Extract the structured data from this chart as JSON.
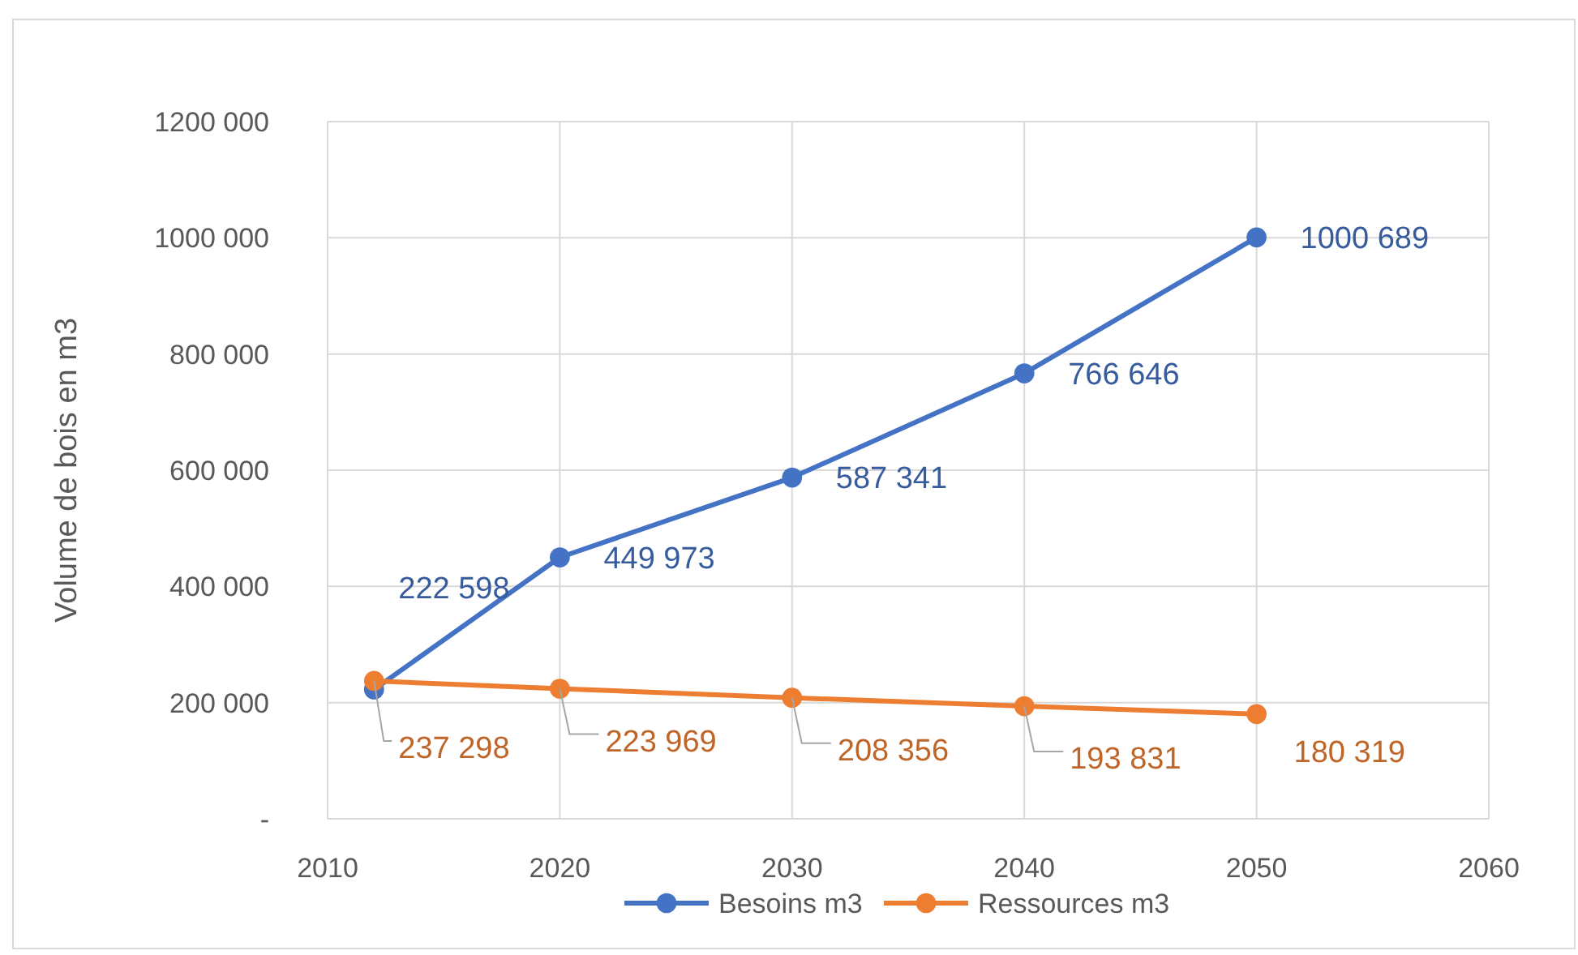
{
  "chart_data": {
    "type": "line",
    "ylabel": "Volume de bois en m3",
    "x": [
      2012,
      2020,
      2030,
      2040,
      2050
    ],
    "series": [
      {
        "name": "Besoins m3",
        "color": "#4472c4",
        "values": [
          222598,
          449973,
          587341,
          766646,
          1000689
        ],
        "value_labels": [
          "222 598",
          "449 973",
          "587 341",
          "766 646",
          "1000 689"
        ]
      },
      {
        "name": "Ressources m3",
        "color": "#ed7d31",
        "values": [
          237298,
          223969,
          208356,
          193831,
          180319
        ],
        "value_labels": [
          "237 298",
          "223 969",
          "208 356",
          "193 831",
          "180 319"
        ]
      }
    ],
    "xlim": [
      2010,
      2060
    ],
    "xticks": [
      2010,
      2020,
      2030,
      2040,
      2050,
      2060
    ],
    "ylim": [
      0,
      1200000
    ],
    "yticks": [
      {
        "value": 0,
        "label": "-"
      },
      {
        "value": 200000,
        "label": "200 000"
      },
      {
        "value": 400000,
        "label": "400 000"
      },
      {
        "value": 600000,
        "label": "600 000"
      },
      {
        "value": 800000,
        "label": "800 000"
      },
      {
        "value": 1000000,
        "label": "1000 000"
      },
      {
        "value": 1200000,
        "label": "1200 000"
      }
    ],
    "grid": true,
    "legend": "bottom",
    "marker": "circle",
    "line_style": "solid"
  }
}
